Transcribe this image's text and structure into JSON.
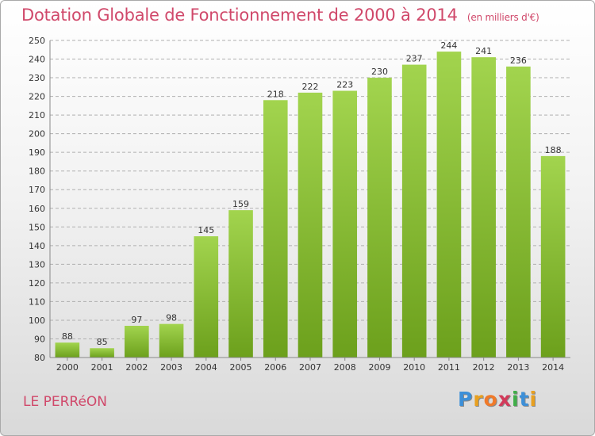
{
  "header": {
    "title": "Dotation Globale de Fonctionnement de 2000 à 2014",
    "subtitle": "(en milliers d'€)"
  },
  "footer": {
    "commune": "LE PERRéON",
    "logo": {
      "letters": [
        "P",
        "r",
        "o",
        "x",
        "i",
        "t",
        "i"
      ],
      "colors": [
        "#3c8fd8",
        "#e8a020",
        "#f07a2a",
        "#d23a5a",
        "#3fae49",
        "#3c8fd8",
        "#e8a020"
      ]
    }
  },
  "colors": {
    "bar_light": "#a2d44e",
    "bar_dark": "#6ca01c",
    "grid": "#b0b0b0",
    "axis_text": "#333333",
    "accent": "#d0486a"
  },
  "chart_data": {
    "type": "bar",
    "categories": [
      "2000",
      "2001",
      "2002",
      "2003",
      "2004",
      "2005",
      "2006",
      "2007",
      "2008",
      "2009",
      "2010",
      "2011",
      "2012",
      "2013",
      "2014"
    ],
    "values": [
      88,
      85,
      97,
      98,
      145,
      159,
      218,
      222,
      223,
      230,
      237,
      244,
      241,
      236,
      188
    ],
    "ylim": [
      80,
      250
    ],
    "ytick_step": 10,
    "grid": true
  }
}
